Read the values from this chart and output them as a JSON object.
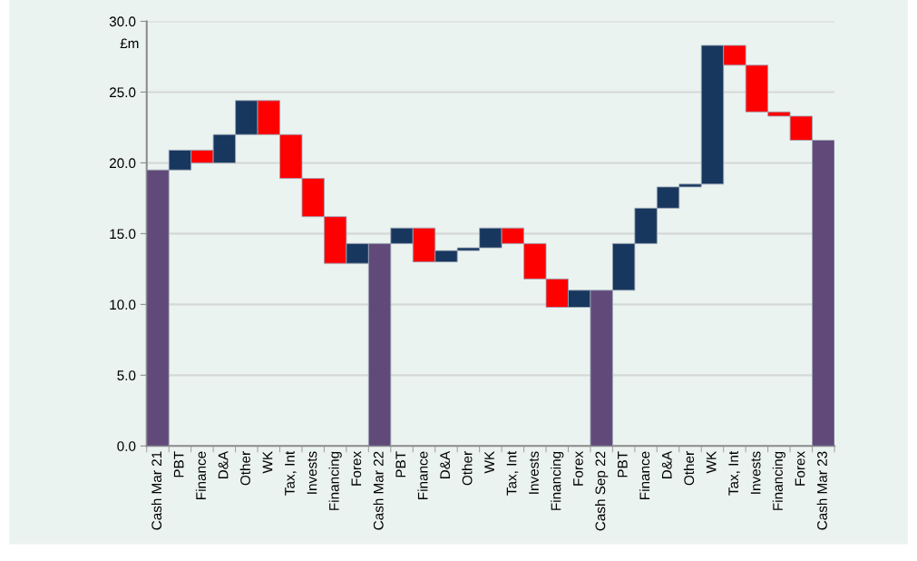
{
  "chart_data": {
    "type": "bar",
    "ylabel": "£m",
    "categories": [
      "Cash Mar 21",
      "PBT",
      "Finance",
      "D&A",
      "Other",
      "WK",
      "Tax, Int",
      "Invests",
      "Financing",
      "Forex",
      "Cash Mar 22",
      "PBT",
      "Finance",
      "D&A",
      "Other",
      "WK",
      "Tax, Int",
      "Invests",
      "Financing",
      "Forex",
      "Cash Sep 22",
      "PBT",
      "Finance",
      "D&A",
      "Other",
      "WK",
      "Tax, Int",
      "Invests",
      "Financing",
      "Forex",
      "Cash Mar 23"
    ],
    "values": [
      19.5,
      1.4,
      -0.9,
      2.0,
      2.4,
      -2.4,
      -3.1,
      -2.7,
      -3.3,
      1.4,
      14.3,
      1.1,
      -2.4,
      0.8,
      0.2,
      1.4,
      -1.1,
      -2.5,
      -2.0,
      1.2,
      11.0,
      3.3,
      2.5,
      1.5,
      0.2,
      9.8,
      -1.4,
      -3.3,
      -0.3,
      -1.7,
      21.6
    ],
    "base": [
      0,
      19.5,
      20.9,
      20.0,
      22.0,
      24.4,
      22.0,
      18.9,
      16.2,
      12.9,
      0,
      14.3,
      15.4,
      13.0,
      13.8,
      14.0,
      15.4,
      14.3,
      11.8,
      9.8,
      0,
      11.0,
      14.3,
      16.8,
      18.3,
      18.5,
      28.3,
      26.9,
      23.6,
      23.3,
      0
    ],
    "colors": [
      "#614a7a",
      "#17375e",
      "#ff0000",
      "#17375e",
      "#17375e",
      "#ff0000",
      "#ff0000",
      "#ff0000",
      "#ff0000",
      "#17375e",
      "#614a7a",
      "#17375e",
      "#ff0000",
      "#17375e",
      "#17375e",
      "#17375e",
      "#ff0000",
      "#ff0000",
      "#ff0000",
      "#17375e",
      "#614a7a",
      "#17375e",
      "#17375e",
      "#17375e",
      "#17375e",
      "#17375e",
      "#ff0000",
      "#ff0000",
      "#ff0000",
      "#ff0000",
      "#614a7a"
    ],
    "ylim": [
      0,
      30
    ],
    "yticks": [
      {
        "value": 0,
        "label": "0.0"
      },
      {
        "value": 5,
        "label": "5.0"
      },
      {
        "value": 10,
        "label": "10.0"
      },
      {
        "value": 15,
        "label": "15.0"
      },
      {
        "value": 20,
        "label": "20.0"
      },
      {
        "value": 25,
        "label": "25.0"
      },
      {
        "value": 30,
        "label": "30.0"
      }
    ],
    "grid": "y"
  }
}
